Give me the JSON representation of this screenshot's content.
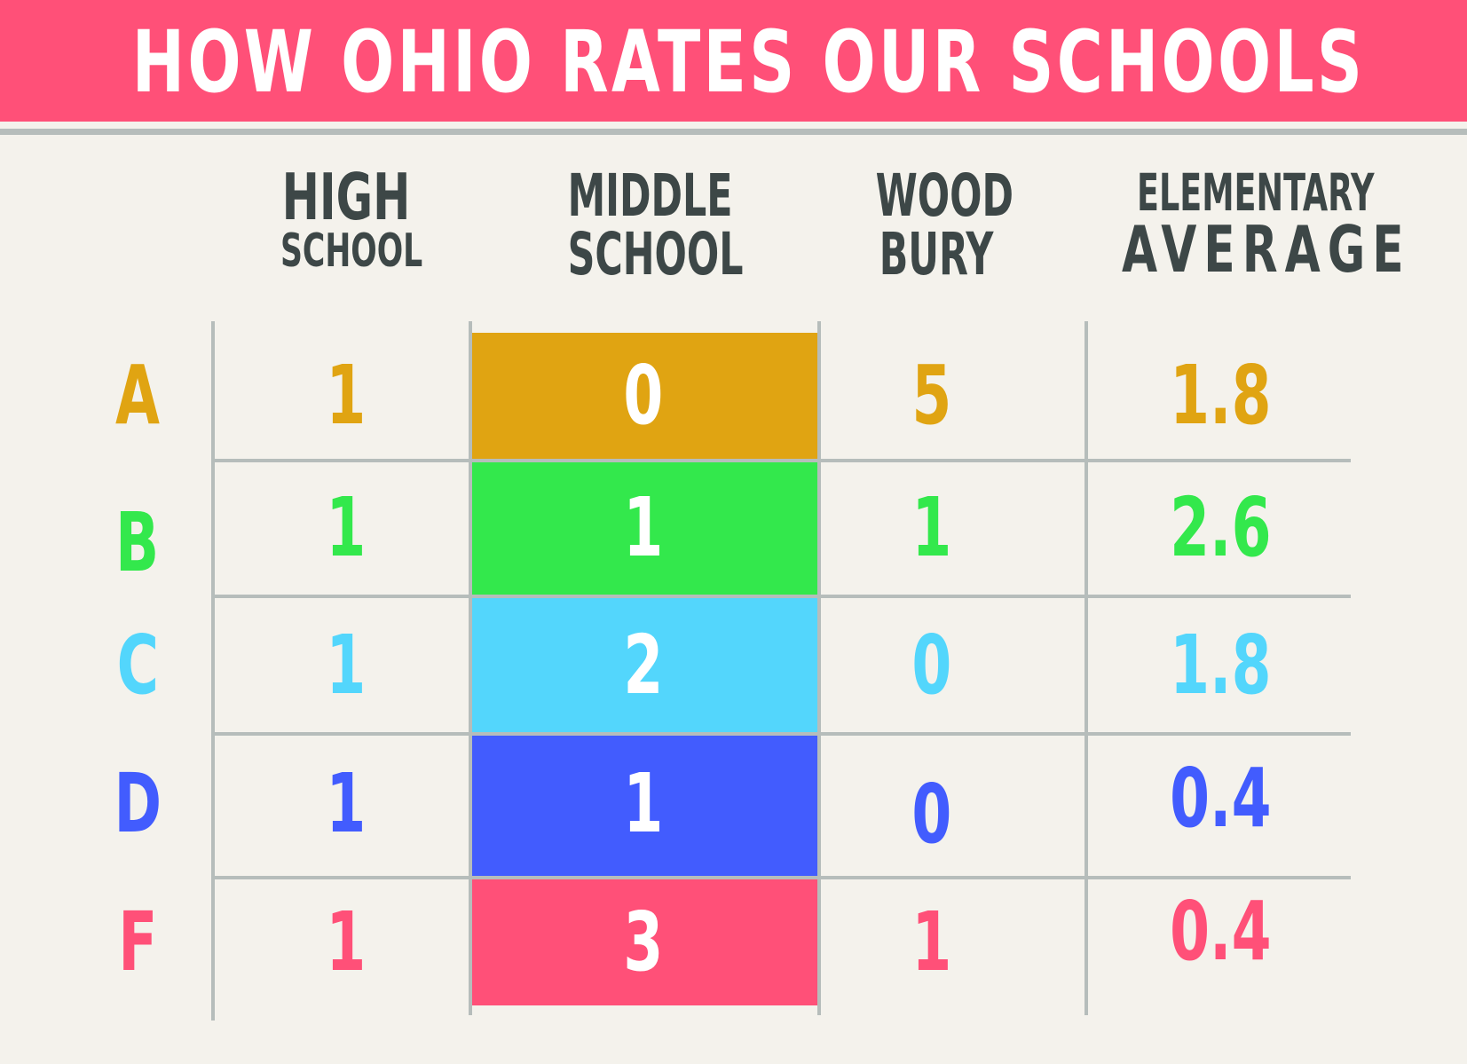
{
  "title": "HOW OHIO RATES OUR SCHOOLS",
  "chart_data": {
    "type": "table",
    "columns": [
      {
        "id": "high",
        "line1": "HIGH",
        "line2": "SCHOOL"
      },
      {
        "id": "middle",
        "line1": "MIDDLE",
        "line2": "SCHOOL"
      },
      {
        "id": "woodbury",
        "line1": "WOOD",
        "line2": "BURY"
      },
      {
        "id": "elementary",
        "line1": "ELEMENTARY",
        "line2": "AVERAGE"
      }
    ],
    "rows": [
      {
        "grade": "A",
        "color": "#e0a412",
        "values": [
          "1",
          "0",
          "5",
          "1.8"
        ]
      },
      {
        "grade": "B",
        "color": "#33e84c",
        "values": [
          "1",
          "1",
          "1",
          "2.6"
        ]
      },
      {
        "grade": "C",
        "color": "#53d6fc",
        "values": [
          "1",
          "2",
          "0",
          "1.8"
        ]
      },
      {
        "grade": "D",
        "color": "#425cfe",
        "values": [
          "1",
          "1",
          "0",
          "0.4"
        ]
      },
      {
        "grade": "F",
        "color": "#ff5078",
        "values": [
          "1",
          "3",
          "1",
          "0.4"
        ]
      }
    ]
  },
  "colors": {
    "banner": "#ff5078",
    "background": "#f4f2ec",
    "header_text": "#3d4747",
    "grid": "#b6bdbb",
    "highlight_text": "#ffffff"
  }
}
